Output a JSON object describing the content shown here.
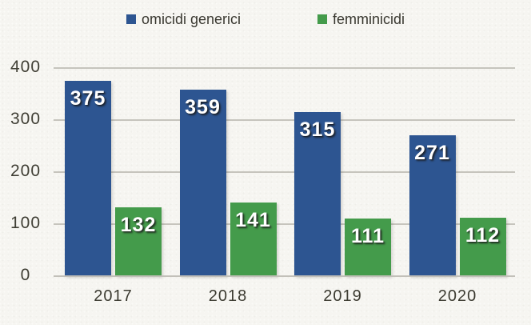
{
  "chart_data": {
    "type": "bar",
    "title": "",
    "xlabel": "",
    "ylabel": "",
    "categories": [
      "2017",
      "2018",
      "2019",
      "2020"
    ],
    "series": [
      {
        "name": "omicidi generici",
        "color": "#2d5591",
        "values": [
          375,
          359,
          315,
          271
        ]
      },
      {
        "name": "femminicidi",
        "color": "#449b4b",
        "values": [
          132,
          141,
          111,
          112
        ]
      }
    ],
    "ylim": [
      0,
      400
    ],
    "yticks": [
      0,
      100,
      200,
      300,
      400
    ],
    "grid": true,
    "legend_position": "top",
    "bar_value_labels_inside_top": true
  },
  "colors": {
    "background": "#f6f5f1",
    "gridline": "#c6c4bd",
    "axis_text": "#3c3b31",
    "bar_label_text": "#ffffff",
    "series_blue": "#2d5591",
    "series_green": "#449b4b"
  }
}
